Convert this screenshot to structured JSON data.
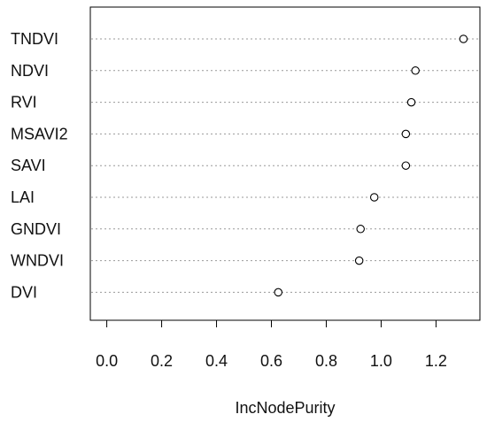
{
  "chart_data": {
    "type": "scatter",
    "title": "",
    "xlabel": "IncNodePurity",
    "ylabel": "",
    "xlim": [
      -0.06,
      1.36
    ],
    "xticks": [
      0.0,
      0.2,
      0.4,
      0.6,
      0.8,
      1.0,
      1.2
    ],
    "xtick_labels": [
      "0.0",
      "0.2",
      "0.4",
      "0.6",
      "0.8",
      "1.0",
      "1.2"
    ],
    "grid": "dotted-horizontal",
    "categories": [
      "TNDVI",
      "NDVI",
      "RVI",
      "MSAVI2",
      "SAVI",
      "LAI",
      "GNDVI",
      "WNDVI",
      "DVI"
    ],
    "series": [
      {
        "values": [
          1.3,
          1.125,
          1.11,
          1.09,
          1.09,
          0.975,
          0.925,
          0.92,
          0.625
        ]
      }
    ],
    "colors": {
      "marker_stroke": "#000000",
      "marker_fill": "#ffffff",
      "grid": "#999999",
      "axis": "#000000"
    }
  }
}
